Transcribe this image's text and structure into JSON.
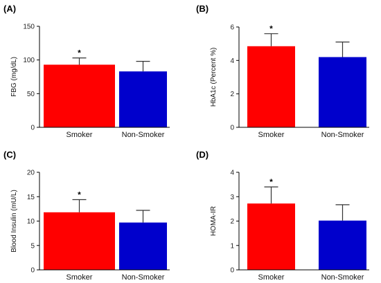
{
  "colors": {
    "smoker": "#ff0000",
    "non_smoker": "#0000cc",
    "error_bar": "#333333"
  },
  "chart_data": [
    {
      "type": "bar",
      "panel": "(A)",
      "title": "",
      "xlabel": "",
      "ylabel": "FBG (mg/dL)",
      "ylim": [
        0,
        150
      ],
      "yticks": [
        0,
        50,
        100,
        150
      ],
      "categories": [
        "Smoker",
        "Non-Smoker"
      ],
      "values": [
        93,
        83
      ],
      "errors": [
        10,
        15
      ],
      "annotations": [
        "*",
        ""
      ],
      "grid": false
    },
    {
      "type": "bar",
      "panel": "(B)",
      "title": "",
      "xlabel": "",
      "ylabel": "HbA1c (Percent %)",
      "ylim": [
        0,
        6
      ],
      "yticks": [
        0,
        2,
        4,
        6
      ],
      "categories": [
        "Smoker",
        "Non-Smoker"
      ],
      "values": [
        4.85,
        4.2
      ],
      "errors": [
        0.75,
        0.9
      ],
      "annotations": [
        "*",
        ""
      ],
      "grid": false
    },
    {
      "type": "bar",
      "panel": "(C)",
      "title": "",
      "xlabel": "",
      "ylabel": "Blood Insulin (mU/L)",
      "ylim": [
        0,
        20
      ],
      "yticks": [
        0,
        5,
        10,
        15,
        20
      ],
      "categories": [
        "Smoker",
        "Non-Smoker"
      ],
      "values": [
        11.8,
        9.7
      ],
      "errors": [
        2.6,
        2.5
      ],
      "annotations": [
        "*",
        ""
      ],
      "grid": false
    },
    {
      "type": "bar",
      "panel": "(D)",
      "title": "",
      "xlabel": "",
      "ylabel": "HOMA-IR",
      "ylim": [
        0,
        4
      ],
      "yticks": [
        0,
        1,
        2,
        3,
        4
      ],
      "categories": [
        "Smoker",
        "Non-Smoker"
      ],
      "values": [
        2.72,
        2.02
      ],
      "errors": [
        0.68,
        0.65
      ],
      "annotations": [
        "*",
        ""
      ],
      "grid": false
    }
  ]
}
